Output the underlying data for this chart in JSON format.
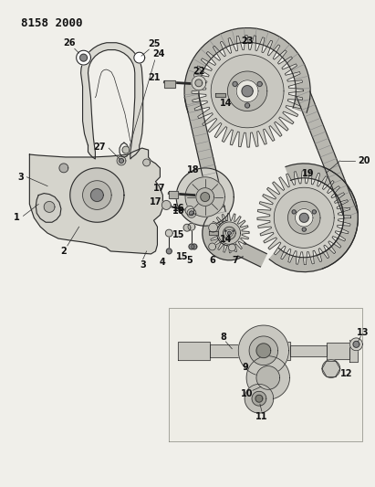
{
  "title": "8158 2000",
  "bg_color": "#f0efea",
  "fig_width": 4.11,
  "fig_height": 5.33,
  "dpi": 100,
  "line_color": "#2a2a2a",
  "fill_light": "#e0dfd8",
  "fill_mid": "#c8c7c0",
  "fill_dark": "#a8a7a0"
}
